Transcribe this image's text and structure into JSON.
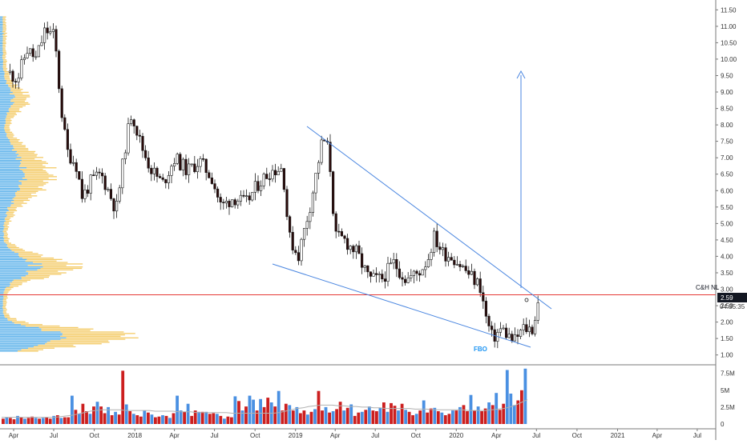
{
  "chart_data": [
    {
      "type": "candlestick",
      "title": "",
      "x_ticks": [
        "Apr",
        "Jul",
        "Oct",
        "2018",
        "Apr",
        "Jul",
        "Oct",
        "2019",
        "Apr",
        "Jul",
        "Oct",
        "2020",
        "Apr",
        "Jul",
        "Oct",
        "2021",
        "Apr",
        "Jul"
      ],
      "y_ticks": [
        "11.50",
        "11.00",
        "10.50",
        "10.00",
        "9.50",
        "9.00",
        "8.50",
        "8.00",
        "7.50",
        "7.00",
        "6.50",
        "6.00",
        "5.50",
        "5.00",
        "4.50",
        "4.00",
        "3.50",
        "3.00",
        "2.50",
        "2.00",
        "1.50",
        "1.00"
      ],
      "ylim": [
        0.7,
        11.8
      ],
      "up_color": "#ffffff",
      "down_color": "#2a0a0a",
      "last_price": "2.59",
      "countdown": "04:35:35",
      "horizontal_line": {
        "label": "C&H NL",
        "value": 2.83,
        "color": "#e53935"
      },
      "annotations": [
        {
          "text": "FBO",
          "color": "#2196f3"
        }
      ],
      "trendline_color": "#4a86e0",
      "series": [
        {
          "name": "price",
          "points": [
            [
              "2017-03-20",
              9.6
            ],
            [
              "2017-04-10",
              9.4
            ],
            [
              "2017-05-01",
              10.3
            ],
            [
              "2017-05-22",
              10.0
            ],
            [
              "2017-06-12",
              10.9
            ],
            [
              "2017-07-03",
              10.7
            ],
            [
              "2017-07-17",
              8.6
            ],
            [
              "2017-07-31",
              7.2
            ],
            [
              "2017-08-21",
              6.8
            ],
            [
              "2017-09-04",
              5.8
            ],
            [
              "2017-09-25",
              6.3
            ],
            [
              "2017-10-16",
              6.5
            ],
            [
              "2017-10-30",
              6.1
            ],
            [
              "2017-11-20",
              5.4
            ],
            [
              "2017-12-11",
              7.4
            ],
            [
              "2017-12-25",
              8.4
            ],
            [
              "2018-01-15",
              7.4
            ],
            [
              "2018-02-05",
              6.7
            ],
            [
              "2018-03-05",
              6.2
            ],
            [
              "2018-04-02",
              7.0
            ],
            [
              "2018-05-01",
              6.6
            ],
            [
              "2018-05-28",
              6.9
            ],
            [
              "2018-06-25",
              6.4
            ],
            [
              "2018-07-16",
              5.5
            ],
            [
              "2018-08-13",
              5.8
            ],
            [
              "2018-09-10",
              5.6
            ],
            [
              "2018-10-08",
              6.2
            ],
            [
              "2018-11-05",
              6.6
            ],
            [
              "2018-12-03",
              6.7
            ],
            [
              "2018-12-17",
              4.6
            ],
            [
              "2019-01-07",
              4.0
            ],
            [
              "2019-02-04",
              5.6
            ],
            [
              "2019-03-04",
              7.6
            ],
            [
              "2019-03-18",
              7.2
            ],
            [
              "2019-04-01",
              4.6
            ],
            [
              "2019-04-22",
              4.5
            ],
            [
              "2019-05-20",
              4.1
            ],
            [
              "2019-06-17",
              3.3
            ],
            [
              "2019-07-15",
              3.3
            ],
            [
              "2019-08-12",
              3.8
            ],
            [
              "2019-09-09",
              3.3
            ],
            [
              "2019-10-07",
              3.5
            ],
            [
              "2019-10-28",
              3.9
            ],
            [
              "2019-11-11",
              4.6
            ],
            [
              "2019-12-02",
              4.1
            ],
            [
              "2019-12-23",
              4.0
            ],
            [
              "2020-01-20",
              3.6
            ],
            [
              "2020-02-24",
              3.1
            ],
            [
              "2020-03-09",
              2.1
            ],
            [
              "2020-03-23",
              1.5
            ],
            [
              "2020-04-13",
              1.8
            ],
            [
              "2020-05-11",
              1.4
            ],
            [
              "2020-06-01",
              1.8
            ],
            [
              "2020-06-22",
              1.8
            ],
            [
              "2020-07-06",
              2.59
            ]
          ]
        }
      ]
    },
    {
      "type": "bar",
      "title": "",
      "y_ticks": [
        "7.5M",
        "5M",
        "2.5M",
        "0"
      ],
      "ylim": [
        0,
        8.3
      ],
      "colors": {
        "up": "#4a90e2",
        "down": "#cc1f1f",
        "ma": "#b0b0b0"
      },
      "series": [
        {
          "name": "volume",
          "values": [
            0.8,
            1.0,
            0.9,
            0.7,
            1.2,
            1.0,
            0.8,
            0.9,
            1.1,
            0.9,
            0.8,
            0.9,
            1.0,
            0.8,
            1.2,
            1.3,
            0.9,
            1.0,
            1.0,
            4.2,
            2.1,
            1.5,
            3.0,
            1.9,
            1.5,
            2.6,
            3.3,
            2.6,
            1.6,
            2.5,
            1.3,
            1.8,
            1.4,
            7.9,
            2.9,
            1.9,
            1.5,
            1.3,
            1.1,
            2.0,
            1.7,
            1.4,
            1.0,
            1.1,
            1.3,
            1.2,
            0.9,
            1.6,
            4.2,
            2.0,
            1.8,
            3.0,
            1.2,
            2.0,
            1.8,
            1.8,
            1.8,
            1.5,
            1.6,
            1.5,
            1.2,
            0.8,
            1.1,
            1.0,
            4.1,
            3.4,
            2.0,
            2.6,
            4.2,
            3.6,
            2.0,
            3.7,
            2.5,
            3.9,
            3.2,
            2.6,
            4.9,
            2.0,
            3.0,
            2.8,
            2.0,
            2.5,
            1.6,
            2.0,
            1.4,
            1.8,
            2.2,
            4.9,
            2.0,
            2.5,
            1.7,
            1.9,
            2.2,
            3.3,
            2.0,
            2.4,
            2.9,
            1.2,
            1.7,
            1.8,
            2.1,
            2.6,
            2.0,
            1.9,
            2.4,
            3.2,
            1.8,
            3.1,
            2.7,
            2.0,
            3.0,
            2.1,
            1.8,
            1.3,
            1.5,
            2.0,
            3.5,
            1.7,
            2.3,
            2.4,
            1.9,
            1.7,
            1.3,
            1.5,
            2.0,
            2.0,
            2.5,
            2.8,
            1.9,
            4.3,
            2.0,
            2.6,
            1.9,
            2.3,
            3.2,
            2.8,
            4.6,
            2.1,
            3.0,
            8.0,
            4.5,
            2.8,
            3.5,
            5.0,
            8.2
          ]
        },
        {
          "name": "volume_ma",
          "values": [
            1.0,
            1.0,
            1.0,
            1.0,
            1.0,
            1.0,
            1.0,
            1.0,
            1.0,
            1.0,
            1.1,
            1.2,
            1.3,
            1.5,
            1.7,
            1.9,
            2.0,
            2.1,
            2.1,
            2.1,
            2.1,
            2.0,
            2.0,
            2.0,
            2.0,
            2.0,
            1.9,
            1.9,
            1.9,
            1.9,
            1.8,
            1.8,
            1.8,
            1.7,
            1.7,
            1.7,
            1.7,
            1.7,
            1.7,
            1.6,
            1.6,
            1.6,
            1.6,
            1.6,
            1.6,
            1.6,
            1.6,
            1.7,
            1.9,
            2.1,
            2.3,
            2.4,
            2.6,
            2.7,
            2.8,
            2.8,
            2.8,
            2.7,
            2.7,
            2.6,
            2.6,
            2.5,
            2.5,
            2.4,
            2.4,
            2.3,
            2.3,
            2.3,
            2.3,
            2.3,
            2.2,
            2.2,
            2.2,
            2.1,
            2.1,
            2.1,
            2.1,
            2.1,
            2.1,
            2.0,
            2.0,
            2.0,
            2.0,
            2.1,
            2.2,
            2.3,
            2.5,
            2.8,
            3.2,
            3.6
          ]
        }
      ]
    }
  ]
}
